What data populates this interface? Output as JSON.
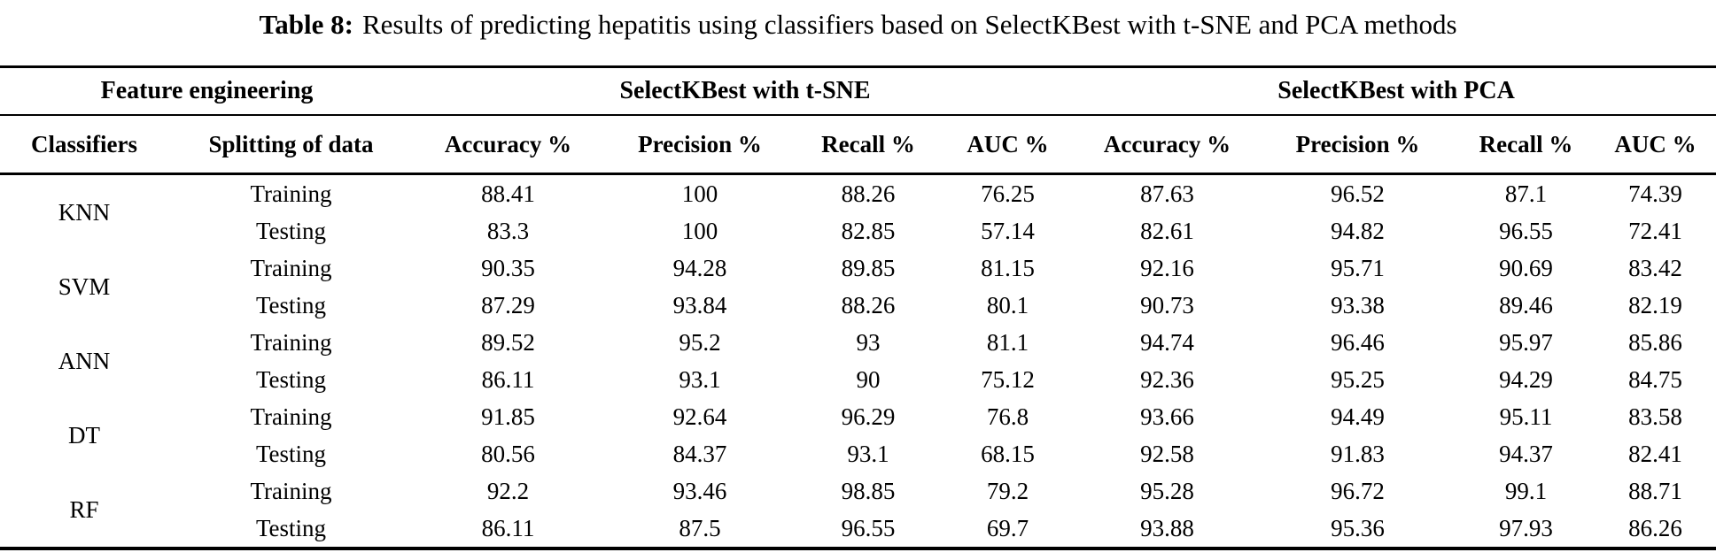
{
  "title": {
    "label": "Table 8:",
    "text": "Results of predicting hepatitis using classifiers based on SelectKBest with t-SNE and PCA methods"
  },
  "table": {
    "group_headers": [
      {
        "label": "Feature engineering"
      },
      {
        "label": "SelectKBest with t-SNE"
      },
      {
        "label": "SelectKBest with PCA"
      }
    ],
    "column_headers": [
      "Classifiers",
      "Splitting of data",
      "Accuracy %",
      "Precision %",
      "Recall %",
      "AUC %",
      "Accuracy %",
      "Precision %",
      "Recall %",
      "AUC %"
    ],
    "classifiers": [
      "KNN",
      "SVM",
      "ANN",
      "DT",
      "RF"
    ],
    "rows": [
      {
        "split": "Training",
        "values": [
          "88.41",
          "100",
          "88.26",
          "76.25",
          "87.63",
          "96.52",
          "87.1",
          "74.39"
        ]
      },
      {
        "split": "Testing",
        "values": [
          "83.3",
          "100",
          "82.85",
          "57.14",
          "82.61",
          "94.82",
          "96.55",
          "72.41"
        ]
      },
      {
        "split": "Training",
        "values": [
          "90.35",
          "94.28",
          "89.85",
          "81.15",
          "92.16",
          "95.71",
          "90.69",
          "83.42"
        ]
      },
      {
        "split": "Testing",
        "values": [
          "87.29",
          "93.84",
          "88.26",
          "80.1",
          "90.73",
          "93.38",
          "89.46",
          "82.19"
        ]
      },
      {
        "split": "Training",
        "values": [
          "89.52",
          "95.2",
          "93",
          "81.1",
          "94.74",
          "96.46",
          "95.97",
          "85.86"
        ]
      },
      {
        "split": "Testing",
        "values": [
          "86.11",
          "93.1",
          "90",
          "75.12",
          "92.36",
          "95.25",
          "94.29",
          "84.75"
        ]
      },
      {
        "split": "Training",
        "values": [
          "91.85",
          "92.64",
          "96.29",
          "76.8",
          "93.66",
          "94.49",
          "95.11",
          "83.58"
        ]
      },
      {
        "split": "Testing",
        "values": [
          "80.56",
          "84.37",
          "93.1",
          "68.15",
          "92.58",
          "91.83",
          "94.37",
          "82.41"
        ]
      },
      {
        "split": "Training",
        "values": [
          "92.2",
          "93.46",
          "98.85",
          "79.2",
          "95.28",
          "96.72",
          "99.1",
          "88.71"
        ]
      },
      {
        "split": "Testing",
        "values": [
          "86.11",
          "87.5",
          "96.55",
          "69.7",
          "93.88",
          "95.36",
          "97.93",
          "86.26"
        ]
      }
    ]
  }
}
